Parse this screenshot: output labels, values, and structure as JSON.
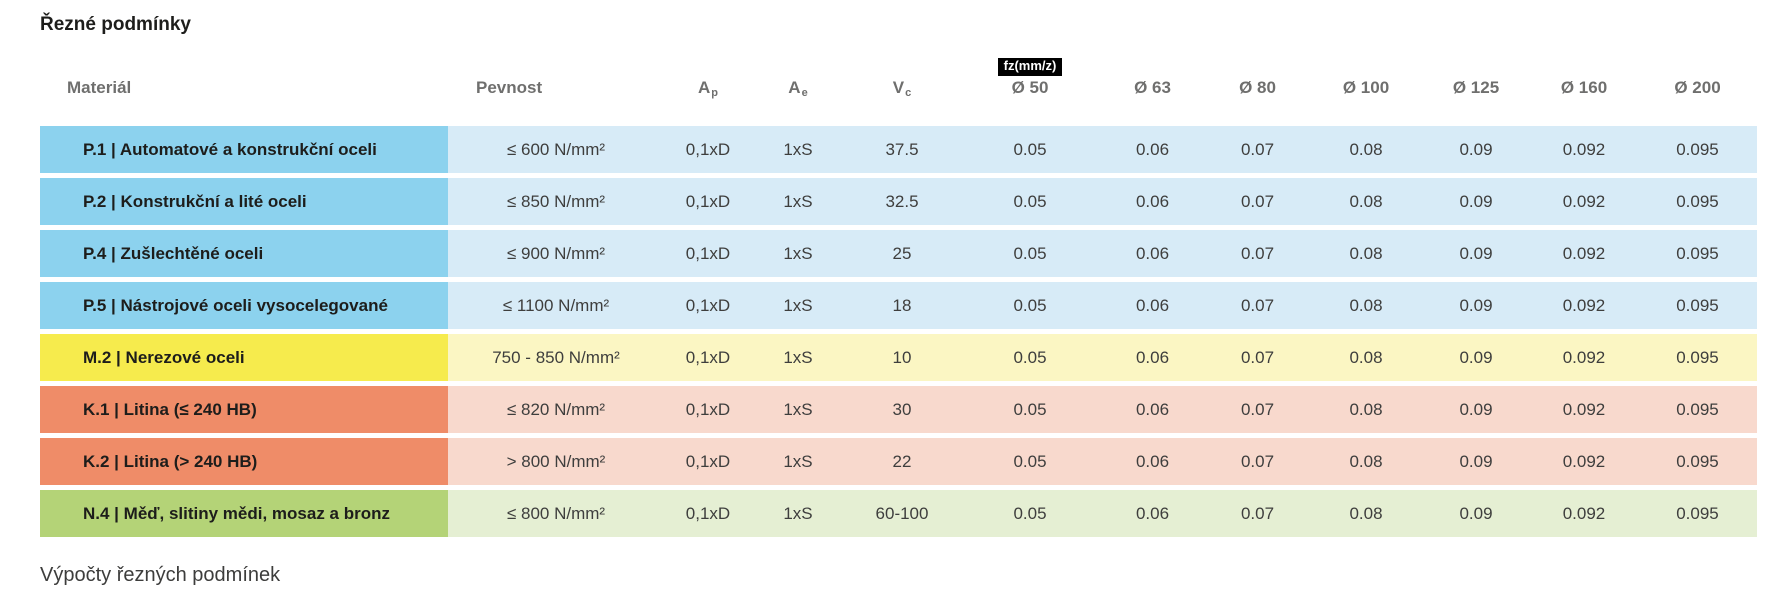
{
  "page": {
    "title": "Řezné podmínky",
    "footer_heading": "Výpočty řezných podmínek"
  },
  "table": {
    "fz_badge_label": "fz(mm/z)",
    "headers": {
      "material": "Materiál",
      "pevnost": "Pevnost",
      "ap_base": "A",
      "ap_sub": "p",
      "ae_base": "A",
      "ae_sub": "e",
      "vc_base": "V",
      "vc_sub": "c",
      "diameters": [
        "Ø 50",
        "Ø 63",
        "Ø 80",
        "Ø 100",
        "Ø 125",
        "Ø 160",
        "Ø 200"
      ]
    },
    "rows": [
      {
        "material": "P.1 | Automatové a konstrukční oceli",
        "pevnost": "≤ 600 N/mm²",
        "ap": "0,1xD",
        "ae": "1xS",
        "vc": "37.5",
        "fz": [
          "0.05",
          "0.06",
          "0.07",
          "0.08",
          "0.09",
          "0.092",
          "0.095"
        ],
        "color": "blue"
      },
      {
        "material": "P.2 | Konstrukční a lité oceli",
        "pevnost": "≤ 850 N/mm²",
        "ap": "0,1xD",
        "ae": "1xS",
        "vc": "32.5",
        "fz": [
          "0.05",
          "0.06",
          "0.07",
          "0.08",
          "0.09",
          "0.092",
          "0.095"
        ],
        "color": "blue"
      },
      {
        "material": "P.4 | Zušlechtěné oceli",
        "pevnost": "≤ 900 N/mm²",
        "ap": "0,1xD",
        "ae": "1xS",
        "vc": "25",
        "fz": [
          "0.05",
          "0.06",
          "0.07",
          "0.08",
          "0.09",
          "0.092",
          "0.095"
        ],
        "color": "blue"
      },
      {
        "material": "P.5 | Nástrojové oceli vysocelegované",
        "pevnost": "≤ 1100 N/mm²",
        "ap": "0,1xD",
        "ae": "1xS",
        "vc": "18",
        "fz": [
          "0.05",
          "0.06",
          "0.07",
          "0.08",
          "0.09",
          "0.092",
          "0.095"
        ],
        "color": "blue"
      },
      {
        "material": "M.2 | Nerezové oceli",
        "pevnost": "750 - 850 N/mm²",
        "ap": "0,1xD",
        "ae": "1xS",
        "vc": "10",
        "fz": [
          "0.05",
          "0.06",
          "0.07",
          "0.08",
          "0.09",
          "0.092",
          "0.095"
        ],
        "color": "yellow"
      },
      {
        "material": "K.1 | Litina (≤ 240 HB)",
        "pevnost": "≤ 820 N/mm²",
        "ap": "0,1xD",
        "ae": "1xS",
        "vc": "30",
        "fz": [
          "0.05",
          "0.06",
          "0.07",
          "0.08",
          "0.09",
          "0.092",
          "0.095"
        ],
        "color": "salmon"
      },
      {
        "material": "K.2 | Litina (> 240 HB)",
        "pevnost": "> 800 N/mm²",
        "ap": "0,1xD",
        "ae": "1xS",
        "vc": "22",
        "fz": [
          "0.05",
          "0.06",
          "0.07",
          "0.08",
          "0.09",
          "0.092",
          "0.095"
        ],
        "color": "salmon"
      },
      {
        "material": "N.4 | Měď, slitiny mědi, mosaz a bronz",
        "pevnost": "≤ 800 N/mm²",
        "ap": "0,1xD",
        "ae": "1xS",
        "vc": "60-100",
        "fz": [
          "0.05",
          "0.06",
          "0.07",
          "0.08",
          "0.09",
          "0.092",
          "0.095"
        ],
        "color": "green"
      }
    ],
    "colors": {
      "blue": {
        "head": "#8cd2ee",
        "cell": "#d7ebf7"
      },
      "yellow": {
        "head": "#f6eb4d",
        "cell": "#fbf6c3"
      },
      "salmon": {
        "head": "#ef8c68",
        "cell": "#f8d9cd"
      },
      "green": {
        "head": "#b4d377",
        "cell": "#e5efd3"
      },
      "badge": {
        "bg": "#000000",
        "text": "#ffffff"
      }
    }
  }
}
